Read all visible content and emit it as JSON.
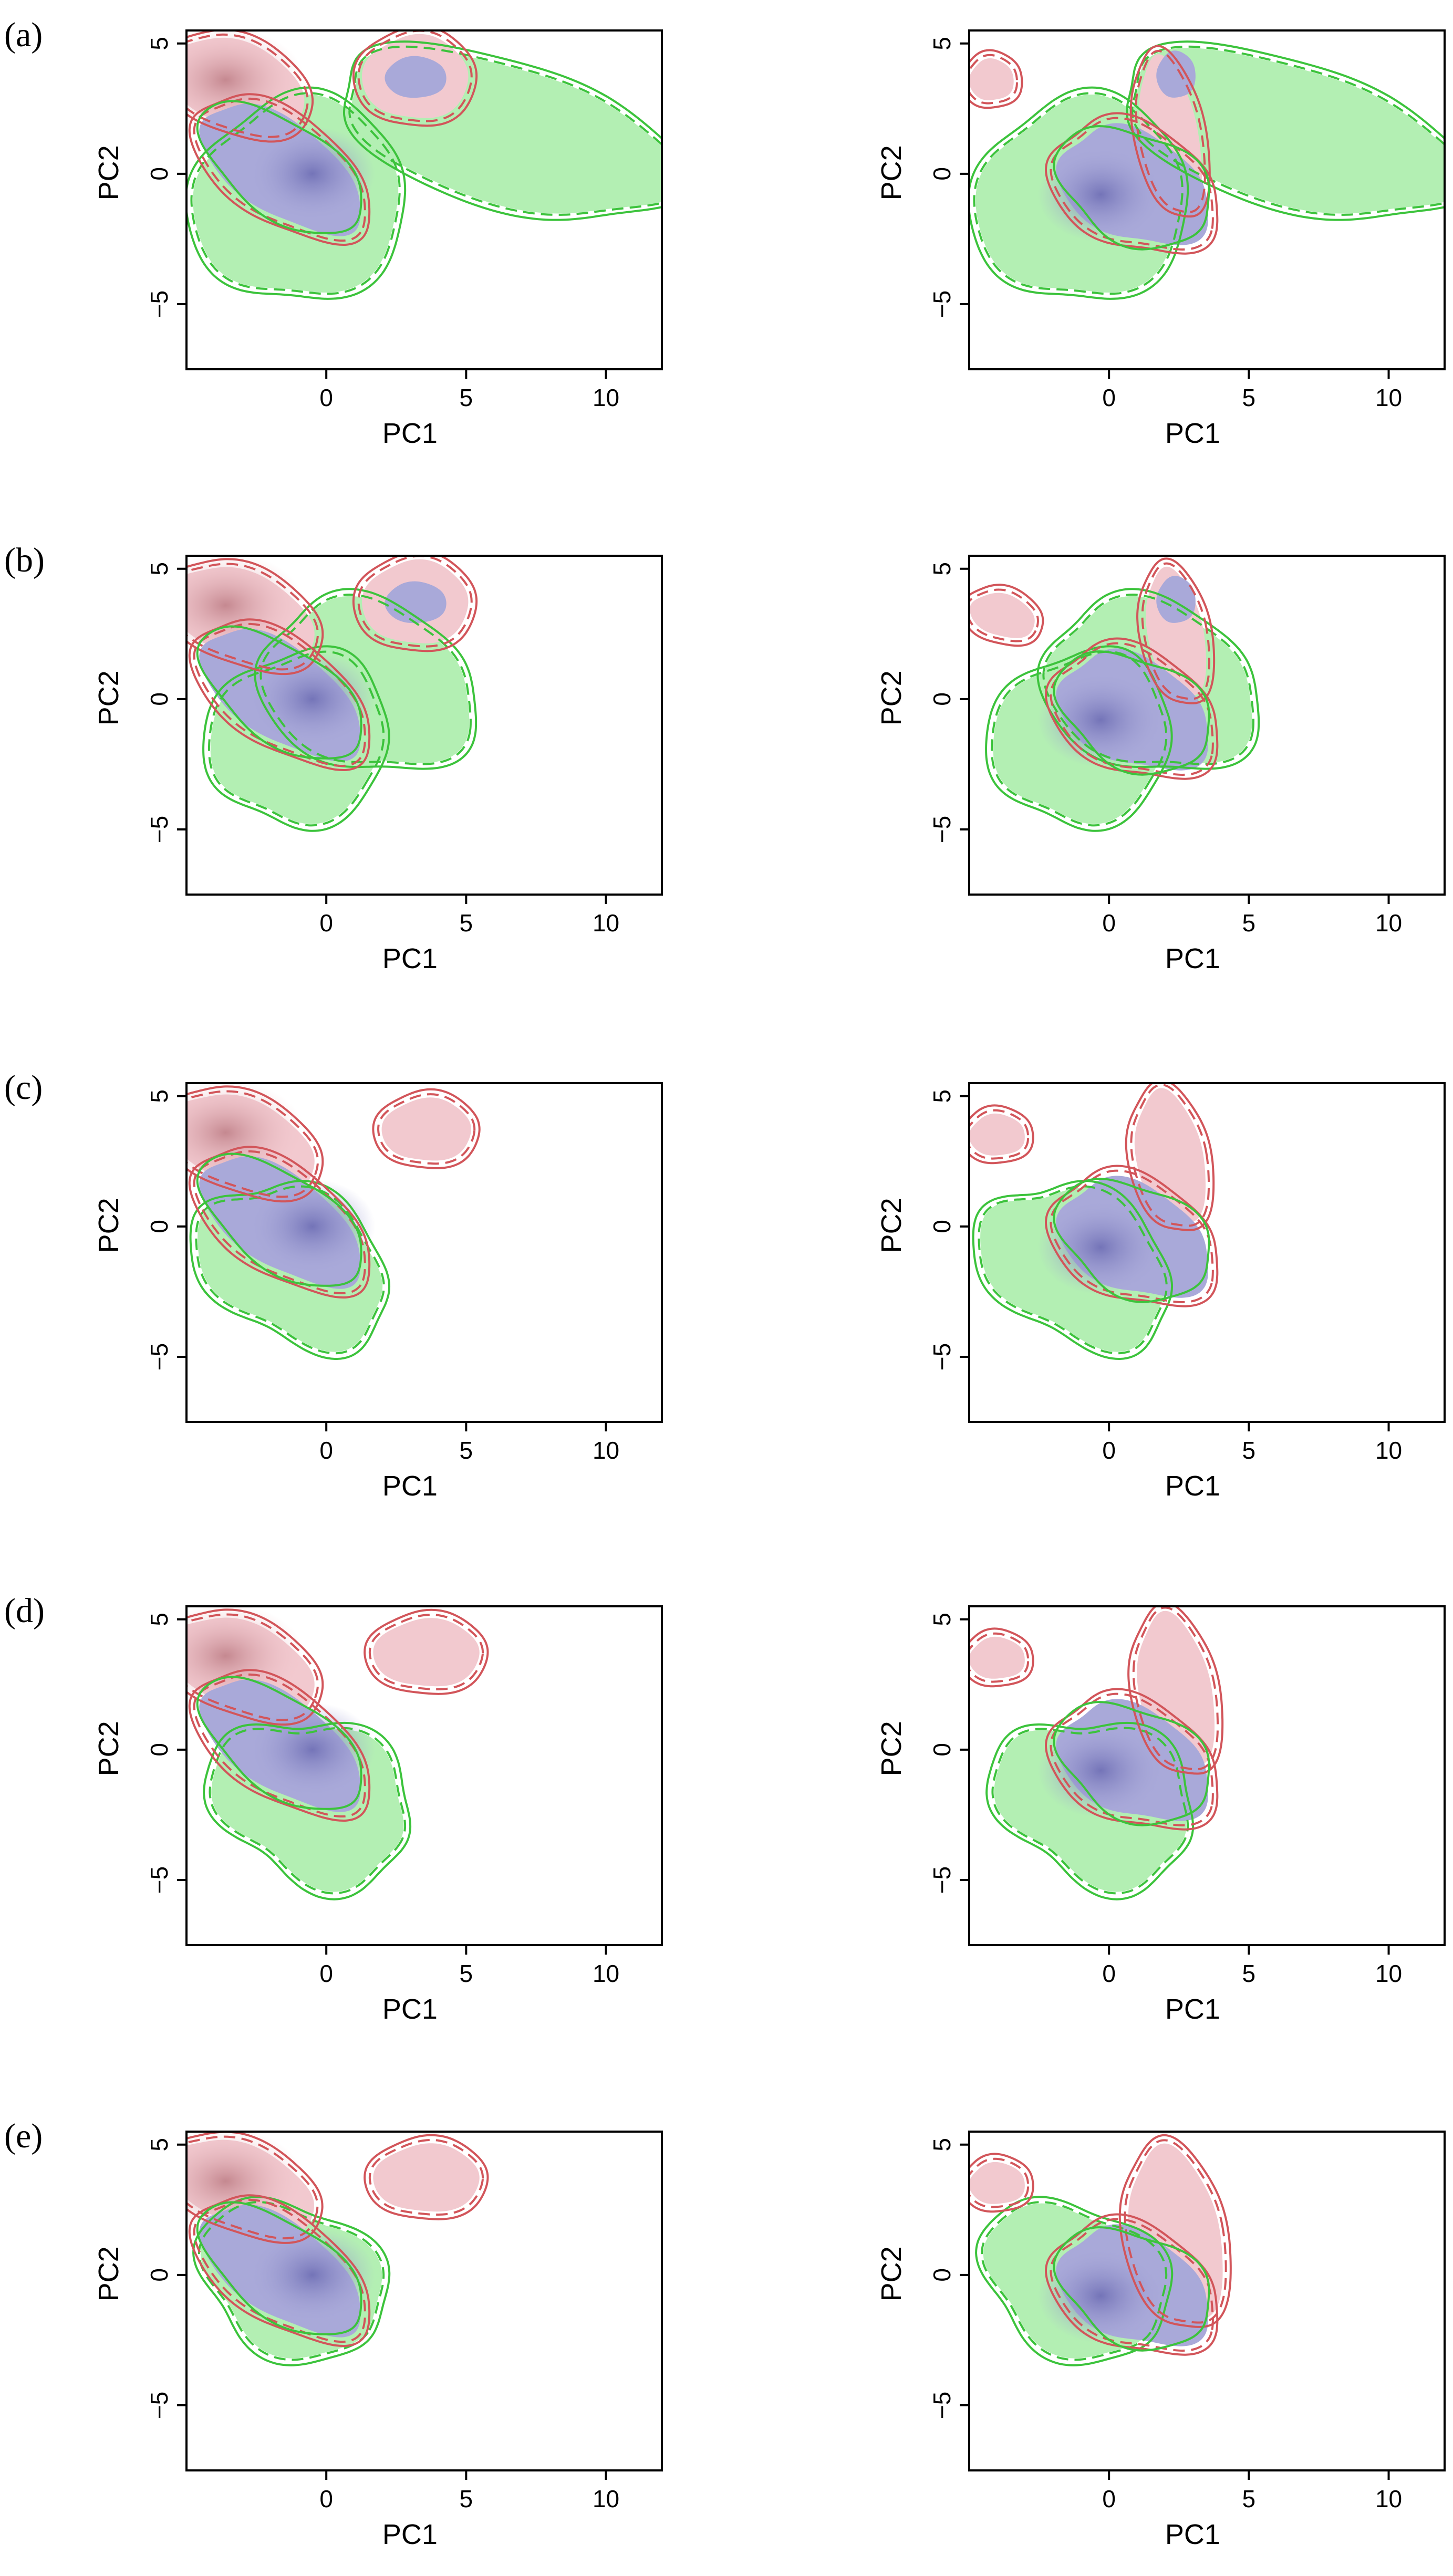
{
  "figure": {
    "rows": [
      {
        "letter": "(a)"
      },
      {
        "letter": "(b)"
      },
      {
        "letter": "(c)"
      },
      {
        "letter": "(d)"
      },
      {
        "letter": "(e)"
      }
    ]
  },
  "colors": {
    "green_fill": "#b3efb3",
    "green_line": "#3cc33c",
    "pink_fill": "#f2c9cf",
    "red_line": "#d2555a",
    "blue_fill": "#a9a9d9",
    "blue_core": "#8585c2",
    "maroon_core": "#cf9ea4"
  },
  "chart_data": [
    {
      "type": "heatmap",
      "panel": "a-left",
      "xlabel": "PC1",
      "ylabel": "PC2",
      "xlim": [
        -5,
        12
      ],
      "ylim": [
        -7.5,
        5.5
      ],
      "xticks": [
        0,
        5,
        10
      ],
      "yticks": [
        -5,
        0,
        5
      ],
      "grid": false
    },
    {
      "type": "heatmap",
      "panel": "a-right",
      "xlabel": "PC1",
      "ylabel": "PC2",
      "xlim": [
        -5,
        12
      ],
      "ylim": [
        -7.5,
        5.5
      ],
      "xticks": [
        0,
        5,
        10
      ],
      "yticks": [
        -5,
        0,
        5
      ],
      "grid": false
    },
    {
      "type": "heatmap",
      "panel": "b-left",
      "xlabel": "PC1",
      "ylabel": "PC2",
      "xlim": [
        -5,
        12
      ],
      "ylim": [
        -7.5,
        5.5
      ],
      "xticks": [
        0,
        5,
        10
      ],
      "yticks": [
        -5,
        0,
        5
      ],
      "grid": false
    },
    {
      "type": "heatmap",
      "panel": "b-right",
      "xlabel": "PC1",
      "ylabel": "PC2",
      "xlim": [
        -5,
        12
      ],
      "ylim": [
        -7.5,
        5.5
      ],
      "xticks": [
        0,
        5,
        10
      ],
      "yticks": [
        -5,
        0,
        5
      ],
      "grid": false
    },
    {
      "type": "heatmap",
      "panel": "c-left",
      "xlabel": "PC1",
      "ylabel": "PC2",
      "xlim": [
        -5,
        12
      ],
      "ylim": [
        -7.5,
        5.5
      ],
      "xticks": [
        0,
        5,
        10
      ],
      "yticks": [
        -5,
        0,
        5
      ],
      "grid": false
    },
    {
      "type": "heatmap",
      "panel": "c-right",
      "xlabel": "PC1",
      "ylabel": "PC2",
      "xlim": [
        -5,
        12
      ],
      "ylim": [
        -7.5,
        5.5
      ],
      "xticks": [
        0,
        5,
        10
      ],
      "yticks": [
        -5,
        0,
        5
      ],
      "grid": false
    },
    {
      "type": "heatmap",
      "panel": "d-left",
      "xlabel": "PC1",
      "ylabel": "PC2",
      "xlim": [
        -5,
        12
      ],
      "ylim": [
        -7.5,
        5.5
      ],
      "xticks": [
        0,
        5,
        10
      ],
      "yticks": [
        -5,
        0,
        5
      ],
      "grid": false
    },
    {
      "type": "heatmap",
      "panel": "d-right",
      "xlabel": "PC1",
      "ylabel": "PC2",
      "xlim": [
        -5,
        12
      ],
      "ylim": [
        -7.5,
        5.5
      ],
      "xticks": [
        0,
        5,
        10
      ],
      "yticks": [
        -5,
        0,
        5
      ],
      "grid": false
    },
    {
      "type": "heatmap",
      "panel": "e-left",
      "xlabel": "PC1",
      "ylabel": "PC2",
      "xlim": [
        -5,
        12
      ],
      "ylim": [
        -7.5,
        5.5
      ],
      "xticks": [
        0,
        5,
        10
      ],
      "yticks": [
        -5,
        0,
        5
      ],
      "grid": false
    },
    {
      "type": "heatmap",
      "panel": "e-right",
      "xlabel": "PC1",
      "ylabel": "PC2",
      "xlim": [
        -5,
        12
      ],
      "ylim": [
        -7.5,
        5.5
      ],
      "xticks": [
        0,
        5,
        10
      ],
      "yticks": [
        -5,
        0,
        5
      ],
      "grid": false
    }
  ]
}
